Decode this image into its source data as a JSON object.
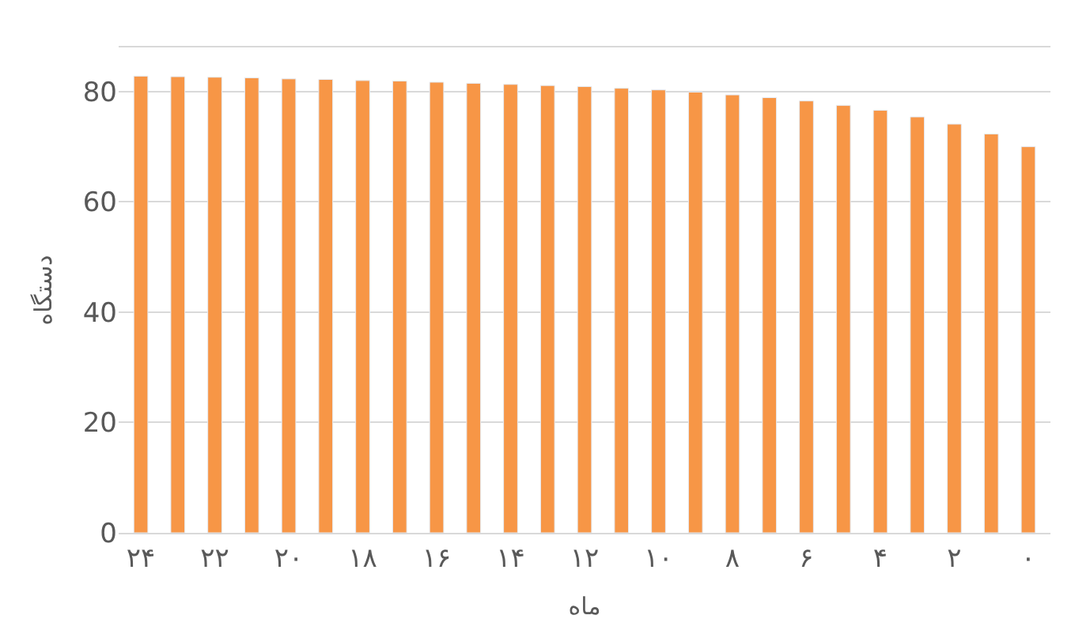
{
  "chart_data": {
    "type": "bar",
    "xlabel": "ماه",
    "ylabel": "دستگاه",
    "categories": [
      "۲۴",
      null,
      "۲۲",
      null,
      "۲۰",
      null,
      "۱۸",
      null,
      "۱۶",
      null,
      "۱۴",
      null,
      "۱۲",
      null,
      "۱۰",
      null,
      "۸",
      null,
      "۶",
      null,
      "۴",
      null,
      "۲",
      null,
      "۰"
    ],
    "series": [
      {
        "color": "#f79646",
        "values": [
          82.8,
          82.7,
          82.6,
          82.5,
          82.3,
          82.2,
          82.0,
          81.9,
          81.7,
          81.5,
          81.3,
          81.1,
          80.9,
          80.6,
          80.3,
          79.9,
          79.4,
          78.9,
          78.3,
          77.5,
          76.6,
          75.4,
          74.1,
          72.3,
          70.0
        ]
      }
    ],
    "ylim": [
      0,
      88
    ],
    "yticks": [
      0,
      20,
      40,
      60,
      80
    ],
    "grid": "y",
    "legend": false
  }
}
